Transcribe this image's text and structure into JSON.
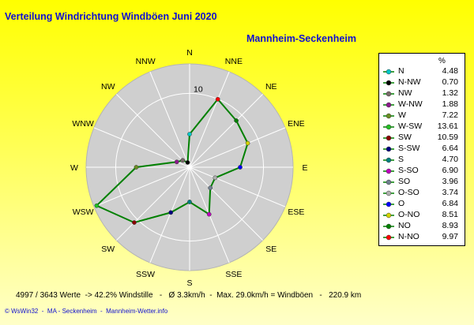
{
  "title": "Verteilung Windrichtung Windböen  Juni 2020",
  "subtitle": "Mannheim-Seckenheim",
  "legend_header": "%",
  "stats": "4997 / 3643 Werte  -> 42.2% Windstille   -   Ø 3.3km/h  -  Max. 29.0km/h = Windböen   -   220.9 km",
  "footer": "© WsWin32  -  MA - Seckenheim  -  Mannheim-Wetter.info",
  "chart_data": {
    "type": "radar",
    "title": "Verteilung Windrichtung Windböen  Juni 2020",
    "subtitle": "Mannheim-Seckenheim",
    "directions": [
      "N",
      "NNE",
      "NE",
      "ENE",
      "E",
      "ESE",
      "SE",
      "SSE",
      "S",
      "SSW",
      "SW",
      "WSW",
      "W",
      "WNW",
      "NW",
      "NNW"
    ],
    "ring_label": "10",
    "rmax": 14,
    "line_color": "#008000",
    "series": [
      {
        "name": "N",
        "value": 4.48,
        "color": "#00c8c8"
      },
      {
        "name": "N-NW",
        "value": 0.7,
        "color": "#000000"
      },
      {
        "name": "NW",
        "value": 1.32,
        "color": "#7a6a6a"
      },
      {
        "name": "W-NW",
        "value": 1.88,
        "color": "#8b1a8b"
      },
      {
        "name": "W",
        "value": 7.22,
        "color": "#6b8e23"
      },
      {
        "name": "W-SW",
        "value": 13.61,
        "color": "#22c022"
      },
      {
        "name": "SW",
        "value": 10.59,
        "color": "#8b0000"
      },
      {
        "name": "S-SW",
        "value": 6.64,
        "color": "#000080"
      },
      {
        "name": "S",
        "value": 4.7,
        "color": "#008080"
      },
      {
        "name": "S-SO",
        "value": 6.9,
        "color": "#c000c0"
      },
      {
        "name": "SO",
        "value": 3.96,
        "color": "#708090"
      },
      {
        "name": "O-SO",
        "value": 3.74,
        "color": "#b0b0b0"
      },
      {
        "name": "O",
        "value": 6.84,
        "color": "#0000ff"
      },
      {
        "name": "O-NO",
        "value": 8.51,
        "color": "#d4d400"
      },
      {
        "name": "NO",
        "value": 8.93,
        "color": "#008000"
      },
      {
        "name": "N-NO",
        "value": 9.97,
        "color": "#ff0000"
      }
    ]
  }
}
